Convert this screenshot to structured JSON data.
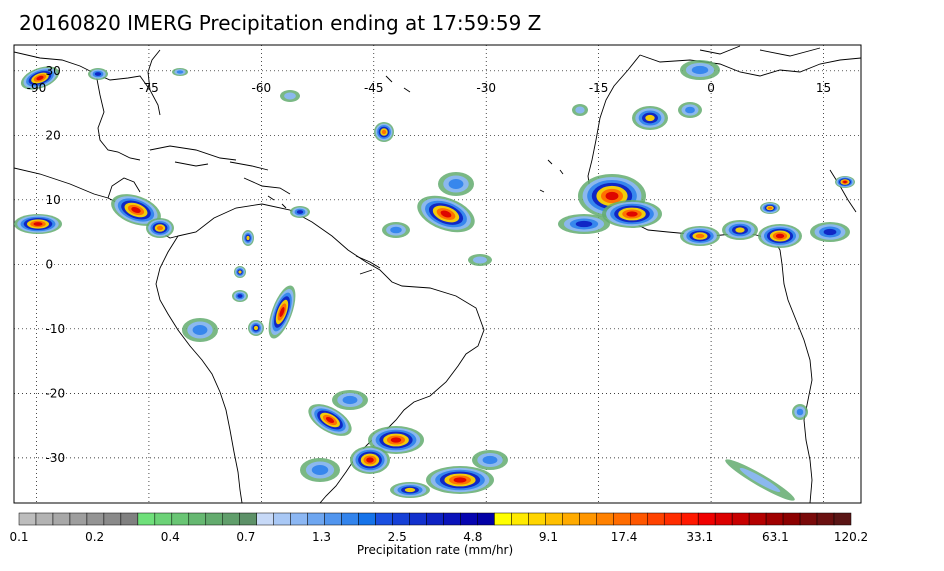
{
  "title": "20160820 IMERG Precipitation ending at 17:59:59 Z",
  "map": {
    "lon_labels": [
      "-90",
      "-75",
      "-60",
      "-45",
      "-30",
      "-15",
      "0",
      "15"
    ],
    "lat_labels": [
      "30",
      "20",
      "10",
      "0",
      "-10",
      "-20",
      "-30"
    ],
    "lon_range": [
      -93,
      20
    ],
    "lat_range": [
      -37,
      34
    ],
    "gridlines": true
  },
  "colorbar": {
    "tick_labels": [
      "0.1",
      "0.2",
      "0.4",
      "0.7",
      "1.3",
      "2.5",
      "4.8",
      "9.1",
      "17.4",
      "33.1",
      "63.1",
      "120.2"
    ],
    "title": "Precipitation rate (mm/hr)",
    "colors": [
      "#bdbdbd",
      "#b3b3b3",
      "#a8a8a8",
      "#9e9e9e",
      "#949494",
      "#8a8a8a",
      "#808080",
      "#6fe07a",
      "#6cd277",
      "#69c574",
      "#66b871",
      "#63ab6e",
      "#609e6b",
      "#5d9168",
      "#c7d9f7",
      "#a9c8f5",
      "#8cb7f3",
      "#6ea6f0",
      "#5195ee",
      "#3384ec",
      "#1673e9",
      "#1a4fe0",
      "#1640d6",
      "#1231cd",
      "#0e22c3",
      "#0a13ba",
      "#0604b0",
      "#0200a6",
      "#ffff00",
      "#ffea00",
      "#ffd500",
      "#ffc000",
      "#ffab00",
      "#ff9600",
      "#ff8100",
      "#ff6c00",
      "#ff5700",
      "#ff4200",
      "#ff2d00",
      "#ff1800",
      "#f00000",
      "#dc0000",
      "#c80000",
      "#b40000",
      "#a00000",
      "#8c0000",
      "#7a0a0a",
      "#6a1010",
      "#5a1515"
    ]
  }
}
